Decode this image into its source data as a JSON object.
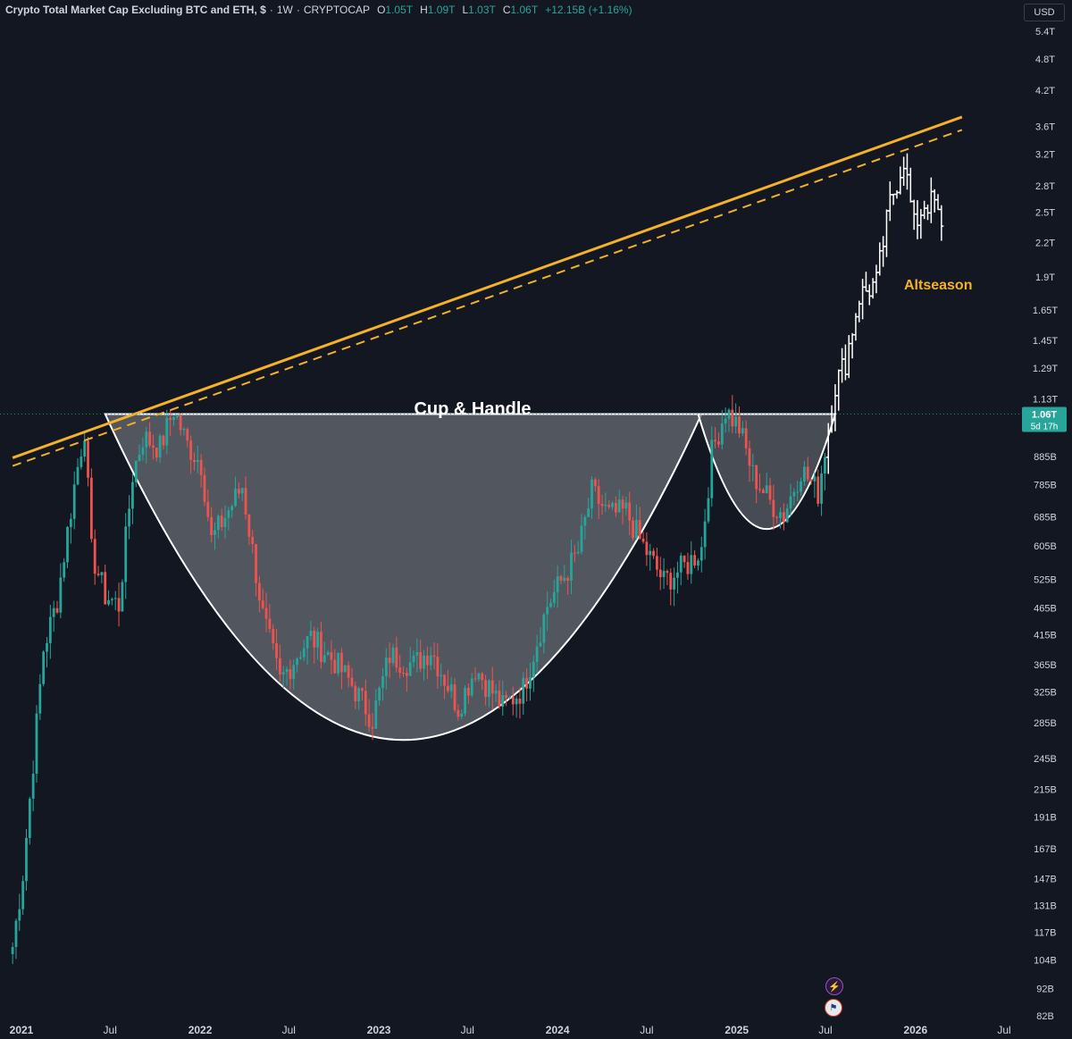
{
  "header": {
    "symbol_title": "Crypto Total Market Cap Excluding BTC and ETH, $",
    "interval": "1W",
    "exchange": "CRYPTOCAP",
    "open_label": "O",
    "open_value": "1.05T",
    "high_label": "H",
    "high_value": "1.09T",
    "low_label": "L",
    "low_value": "1.03T",
    "close_label": "C",
    "close_value": "1.06T",
    "change_value": "+12.15B (+1.16%)"
  },
  "currency": "USD",
  "colors": {
    "background": "#131722",
    "up_candle": "#26a69a",
    "down_candle": "#ef5350",
    "trendline": "#f5b228",
    "pattern_fill": "#5a5d66",
    "pattern_stroke": "#ffffff",
    "price_tag": "#26a69a",
    "axis_text": "#d1d4dc"
  },
  "chart_data": {
    "type": "candlestick",
    "y_scale": "log",
    "ylim": [
      82,
      5600
    ],
    "y_unit": "billion USD",
    "y_ticks": [
      {
        "label": "5.4T",
        "value": 5400
      },
      {
        "label": "4.8T",
        "value": 4800
      },
      {
        "label": "4.2T",
        "value": 4200
      },
      {
        "label": "3.6T",
        "value": 3600
      },
      {
        "label": "3.2T",
        "value": 3200
      },
      {
        "label": "2.8T",
        "value": 2800
      },
      {
        "label": "2.5T",
        "value": 2500
      },
      {
        "label": "2.2T",
        "value": 2200
      },
      {
        "label": "1.9T",
        "value": 1900
      },
      {
        "label": "1.65T",
        "value": 1650
      },
      {
        "label": "1.45T",
        "value": 1450
      },
      {
        "label": "1.29T",
        "value": 1290
      },
      {
        "label": "1.13T",
        "value": 1130
      },
      {
        "label": "885B",
        "value": 885
      },
      {
        "label": "785B",
        "value": 785
      },
      {
        "label": "685B",
        "value": 685
      },
      {
        "label": "605B",
        "value": 605
      },
      {
        "label": "525B",
        "value": 525
      },
      {
        "label": "465B",
        "value": 465
      },
      {
        "label": "415B",
        "value": 415
      },
      {
        "label": "365B",
        "value": 365
      },
      {
        "label": "325B",
        "value": 325
      },
      {
        "label": "285B",
        "value": 285
      },
      {
        "label": "245B",
        "value": 245
      },
      {
        "label": "215B",
        "value": 215
      },
      {
        "label": "191B",
        "value": 191
      },
      {
        "label": "167B",
        "value": 167
      },
      {
        "label": "147B",
        "value": 147
      },
      {
        "label": "131B",
        "value": 131
      },
      {
        "label": "117B",
        "value": 117
      },
      {
        "label": "104B",
        "value": 104
      },
      {
        "label": "92B",
        "value": 92
      },
      {
        "label": "82B",
        "value": 82
      }
    ],
    "x_ticks": [
      {
        "label": "2021",
        "date": "2021-01-01"
      },
      {
        "label": "Jul",
        "date": "2021-07-01"
      },
      {
        "label": "2022",
        "date": "2022-01-01"
      },
      {
        "label": "Jul",
        "date": "2022-07-01"
      },
      {
        "label": "2023",
        "date": "2023-01-01"
      },
      {
        "label": "Jul",
        "date": "2023-07-01"
      },
      {
        "label": "2024",
        "date": "2024-01-01"
      },
      {
        "label": "Jul",
        "date": "2024-07-01"
      },
      {
        "label": "2025",
        "date": "2025-01-01"
      },
      {
        "label": "Jul",
        "date": "2025-07-01"
      },
      {
        "label": "2026",
        "date": "2026-01-01"
      },
      {
        "label": "Jul",
        "date": "2026-07-01"
      }
    ],
    "last_price": {
      "label": "1.06T",
      "value": 1060,
      "countdown": "5d 17h"
    },
    "anchors": [
      [
        "2020-12-14",
        110
      ],
      [
        "2021-01-04",
        150
      ],
      [
        "2021-02-15",
        390
      ],
      [
        "2021-03-15",
        480
      ],
      [
        "2021-04-19",
        780
      ],
      [
        "2021-05-10",
        1000
      ],
      [
        "2021-05-24",
        590
      ],
      [
        "2021-06-21",
        490
      ],
      [
        "2021-07-19",
        470
      ],
      [
        "2021-08-16",
        820
      ],
      [
        "2021-09-06",
        960
      ],
      [
        "2021-10-11",
        920
      ],
      [
        "2021-11-08",
        1080
      ],
      [
        "2021-12-06",
        930
      ],
      [
        "2022-01-03",
        860
      ],
      [
        "2022-01-24",
        620
      ],
      [
        "2022-03-28",
        780
      ],
      [
        "2022-05-09",
        450
      ],
      [
        "2022-06-13",
        340
      ],
      [
        "2022-07-25",
        390
      ],
      [
        "2022-08-15",
        410
      ],
      [
        "2022-10-03",
        370
      ],
      [
        "2022-11-07",
        335
      ],
      [
        "2022-12-19",
        290
      ],
      [
        "2023-01-23",
        380
      ],
      [
        "2023-03-13",
        365
      ],
      [
        "2023-04-17",
        390
      ],
      [
        "2023-06-12",
        305
      ],
      [
        "2023-07-17",
        360
      ],
      [
        "2023-09-11",
        305
      ],
      [
        "2023-10-23",
        330
      ],
      [
        "2023-12-11",
        470
      ],
      [
        "2024-02-12",
        590
      ],
      [
        "2024-03-11",
        760
      ],
      [
        "2024-04-15",
        690
      ],
      [
        "2024-05-20",
        700
      ],
      [
        "2024-06-17",
        620
      ],
      [
        "2024-08-05",
        520
      ],
      [
        "2024-09-23",
        560
      ],
      [
        "2024-10-21",
        600
      ],
      [
        "2024-11-11",
        900
      ],
      [
        "2024-12-09",
        1080
      ],
      [
        "2025-01-06",
        1000
      ],
      [
        "2025-02-03",
        820
      ],
      [
        "2025-03-10",
        730
      ],
      [
        "2025-04-07",
        690
      ],
      [
        "2025-05-12",
        840
      ],
      [
        "2025-06-16",
        760
      ],
      [
        "2025-07-07",
        1000
      ],
      [
        "2025-07-21",
        1200
      ],
      [
        "2025-08-11",
        1330
      ],
      [
        "2025-09-08",
        1750
      ],
      [
        "2025-10-13",
        1850
      ],
      [
        "2025-11-10",
        2600
      ],
      [
        "2025-12-08",
        3150
      ],
      [
        "2025-12-29",
        2350
      ],
      [
        "2026-01-19",
        2600
      ],
      [
        "2026-02-09",
        2600
      ],
      [
        "2026-02-23",
        2300
      ]
    ],
    "annotations": [
      {
        "text": "Cup & Handle",
        "color": "#ffffff"
      },
      {
        "text": "Altseason",
        "color": "#f5b228"
      }
    ],
    "trendlines": [
      {
        "style": "solid",
        "start": [
          "2020-12-14",
          880
        ],
        "end": [
          "2026-04-06",
          3750
        ]
      },
      {
        "style": "dashed",
        "start": [
          "2020-12-14",
          850
        ],
        "end": [
          "2026-04-06",
          3550
        ]
      }
    ],
    "cup": {
      "rim_left": [
        "2021-06-21",
        1060
      ],
      "rim_right": [
        "2024-10-21",
        1060
      ],
      "bottom": [
        "2023-05-15",
        265
      ]
    },
    "handle": {
      "rim_left": [
        "2024-10-14",
        1060
      ],
      "rim_right": [
        "2025-07-21",
        1060
      ],
      "bottom": [
        "2025-03-17",
        650
      ]
    },
    "grid": false,
    "legend_position": "top-left"
  },
  "icons": [
    "flash-alert-icon",
    "us-flag-icon"
  ]
}
